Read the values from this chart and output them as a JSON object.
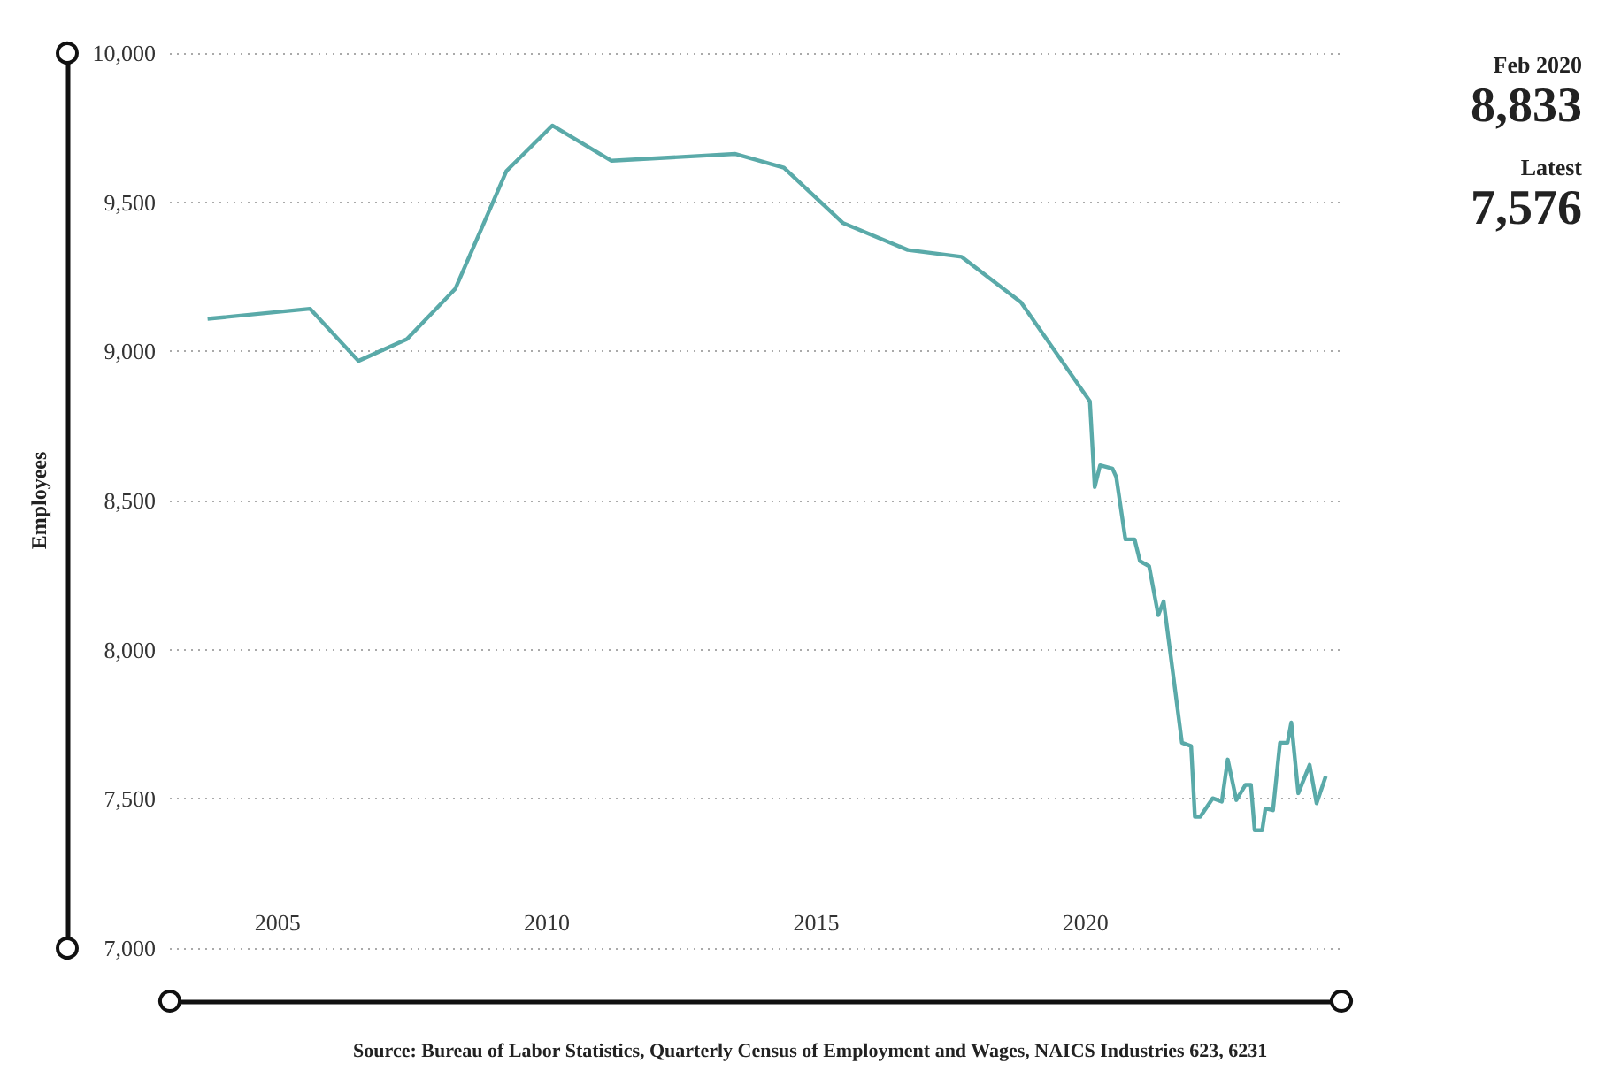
{
  "chart_data": {
    "type": "line",
    "ylabel": "Employees",
    "x": [
      2003.7,
      2005.6,
      2006.5,
      2007.4,
      2008.3,
      2009.25,
      2010.1,
      2011.2,
      2013.5,
      2014.4,
      2015.5,
      2016.7,
      2017.7,
      2018.8,
      2020.08,
      2020.17,
      2020.27,
      2020.5,
      2020.57,
      2020.74,
      2020.91,
      2021.01,
      2021.18,
      2021.35,
      2021.45,
      2021.79,
      2021.96,
      2022.03,
      2022.13,
      2022.36,
      2022.53,
      2022.64,
      2022.8,
      2022.97,
      2023.07,
      2023.14,
      2023.28,
      2023.34,
      2023.48,
      2023.61,
      2023.75,
      2023.82,
      2023.95,
      2024.16,
      2024.29,
      2024.46
    ],
    "series": [
      {
        "color": "#5aaaa9",
        "values": [
          9109,
          9143,
          8968,
          9041,
          9210,
          9605,
          9757,
          9639,
          9662,
          9616,
          9430,
          9340,
          9317,
          9165,
          8833,
          8545,
          8618,
          8607,
          8579,
          8370,
          8370,
          8297,
          8280,
          8116,
          8162,
          7688,
          7677,
          7440,
          7440,
          7502,
          7491,
          7632,
          7496,
          7547,
          7547,
          7395,
          7395,
          7468,
          7462,
          7688,
          7688,
          7756,
          7519,
          7614,
          7485,
          7576
        ]
      }
    ],
    "xlim": [
      2003,
      2024.75
    ],
    "xticks": [
      2005,
      2010,
      2015,
      2020
    ],
    "ylim": [
      7000,
      10000
    ],
    "yticks": [
      {
        "value": 7000,
        "label": "7,000"
      },
      {
        "value": 7500,
        "label": "7,500"
      },
      {
        "value": 8000,
        "label": "8,000"
      },
      {
        "value": 8500,
        "label": "8,500"
      },
      {
        "value": 9000,
        "label": "9,000"
      },
      {
        "value": 9500,
        "label": "9,500"
      },
      {
        "value": 10000,
        "label": "10,000"
      }
    ],
    "grid": "y",
    "marker": "none",
    "line_style": "solid",
    "annotations": [
      "Feb 2020",
      "8,833",
      "Latest",
      "7,576",
      "Source: Bureau of Labor Statistics, Quarterly Census of Employment and Wages, NAICS Industries 623, 6231"
    ]
  }
}
